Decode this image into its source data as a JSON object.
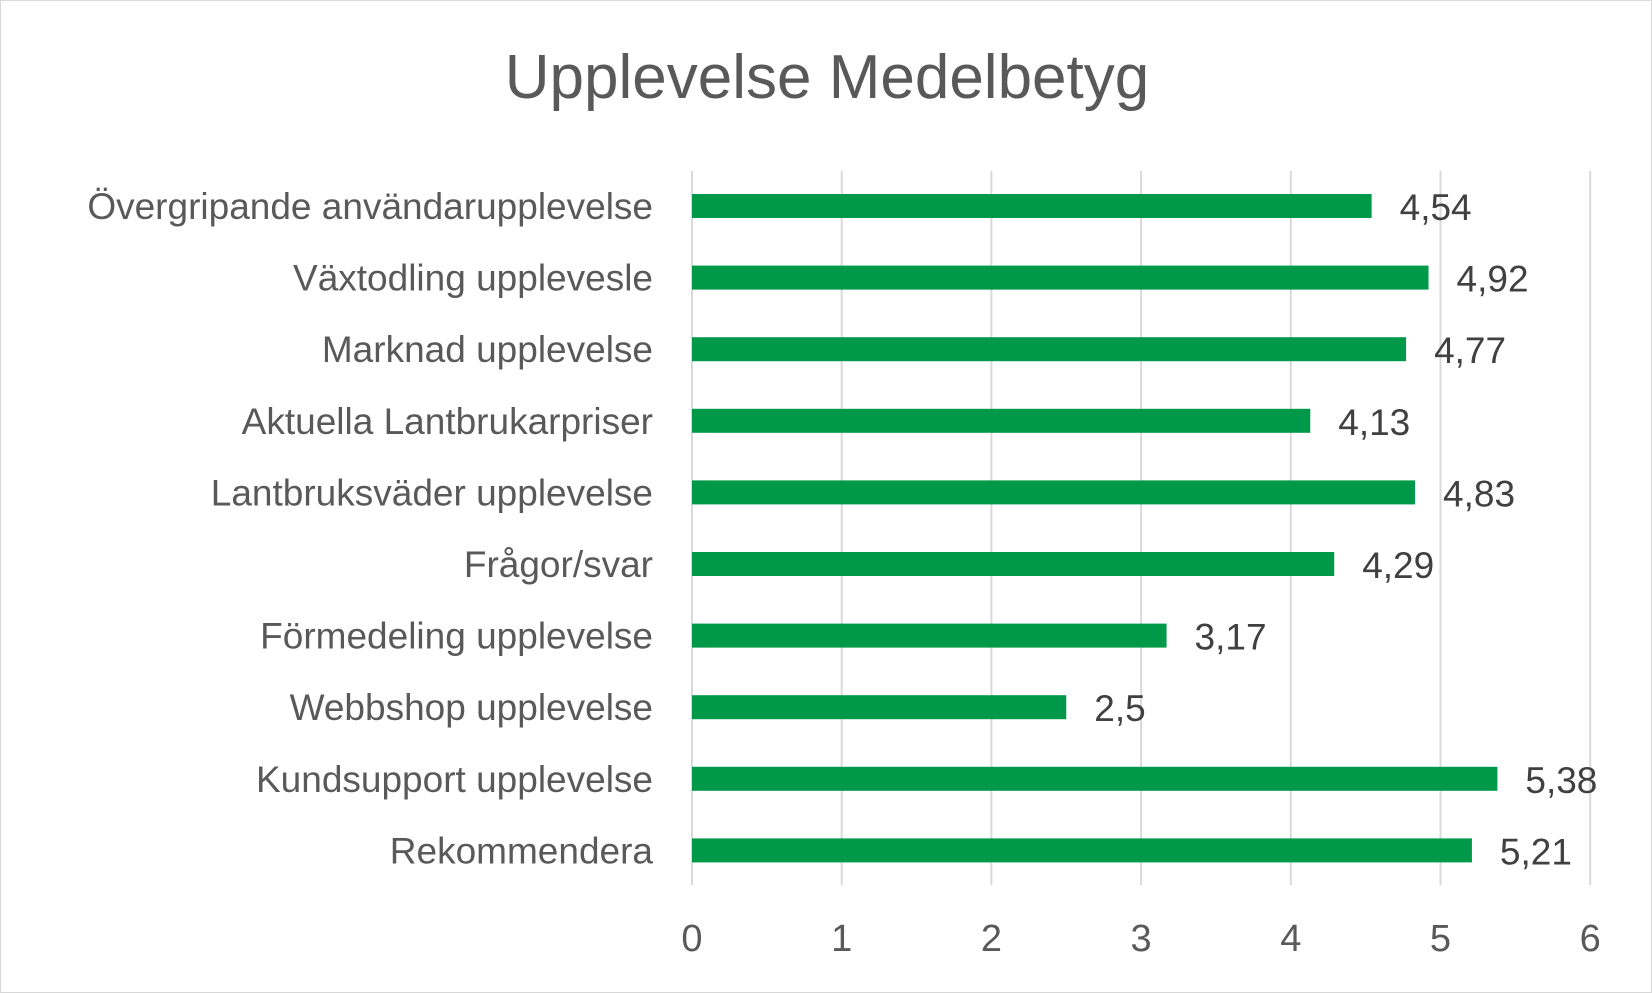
{
  "chart_data": {
    "type": "bar",
    "orientation": "horizontal",
    "title": "Upplevelse Medelbetyg",
    "categories": [
      "Övergripande användarupplevelse",
      "Växtodling upplevesle",
      "Marknad upplevelse",
      "Aktuella Lantbrukarpriser",
      "Lantbruksväder upplevelse",
      "Frågor/svar",
      "Förmedeling upplevelse",
      "Webbshop upplevelse ",
      "Kundsupport upplevelse",
      "Rekommendera"
    ],
    "values": [
      4.54,
      4.92,
      4.77,
      4.13,
      4.83,
      4.29,
      3.17,
      2.5,
      5.38,
      5.21
    ],
    "data_labels": [
      "4,54",
      "4,92",
      "4,77",
      "4,13",
      "4,83",
      "4,29",
      "3,17",
      "2,5",
      "5,38",
      "5,21"
    ],
    "xlim": [
      0,
      6
    ],
    "x_ticks": [
      "0",
      "1",
      "2",
      "3",
      "4",
      "5",
      "6"
    ],
    "grid": "vertical",
    "legend": "none",
    "bar_color": "#00994a",
    "grid_color": "#d9d9d9"
  }
}
